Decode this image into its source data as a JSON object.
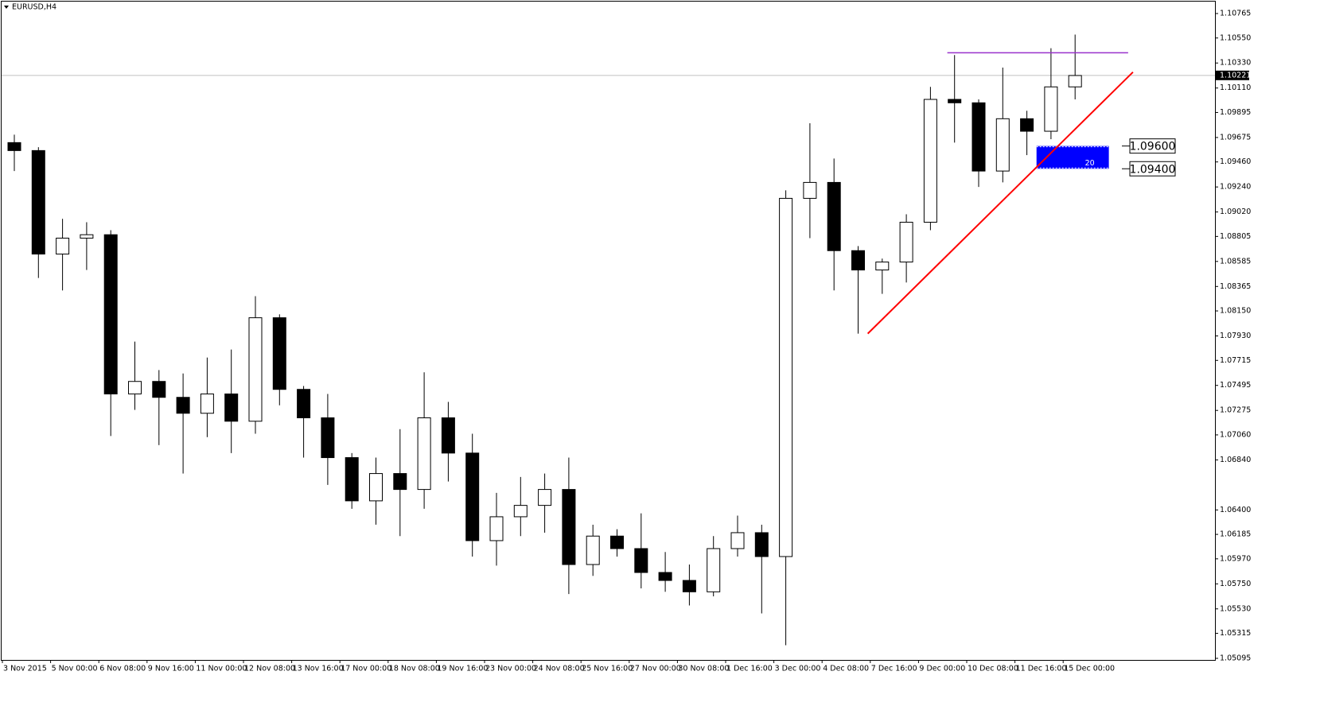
{
  "chart_data": {
    "type": "candlestick",
    "title": "EURUSD,H4",
    "categories": [
      "3 Nov 2015",
      null,
      "5 Nov 00:00",
      null,
      "6 Nov 08:00",
      null,
      "9 Nov 16:00",
      null,
      "11 Nov 00:00",
      null,
      "12 Nov 08:00",
      null,
      "13 Nov 16:00",
      null,
      "17 Nov 00:00",
      null,
      "18 Nov 08:00",
      null,
      "19 Nov 16:00",
      null,
      "23 Nov 00:00",
      null,
      "24 Nov 08:00",
      null,
      "25 Nov 16:00",
      null,
      "27 Nov 00:00",
      null,
      "30 Nov 08:00",
      null,
      "1 Dec 16:00",
      null,
      "3 Dec 00:00",
      null,
      "4 Dec 08:00",
      null,
      "7 Dec 16:00",
      null,
      "9 Dec 00:00",
      null,
      "10 Dec 08:00",
      null,
      "11 Dec 16:00",
      null,
      "15 Dec 00:00"
    ],
    "open": [
      1.0963,
      1.0956,
      1.0865,
      1.0879,
      1.0882,
      1.0742,
      1.0753,
      1.0739,
      1.0725,
      1.0742,
      1.0718,
      1.0809,
      1.0746,
      1.0721,
      1.0686,
      1.0648,
      1.0672,
      1.0658,
      1.0721,
      1.069,
      1.0613,
      1.0634,
      1.0644,
      1.0658,
      1.0592,
      1.0617,
      1.0606,
      1.0585,
      1.0578,
      1.0568,
      1.0606,
      1.062,
      1.0599,
      1.0914,
      1.0928,
      1.0868,
      1.0851,
      1.0858,
      1.0893,
      1.1001,
      1.0998,
      1.0938,
      1.0984,
      1.0973,
      1.1012
    ],
    "high": [
      1.097,
      1.0959,
      1.0896,
      1.0893,
      1.0886,
      1.0788,
      1.0763,
      1.076,
      1.0774,
      1.0781,
      1.0828,
      1.0812,
      1.0749,
      1.0742,
      1.069,
      1.0686,
      1.0711,
      1.0761,
      1.0735,
      1.0707,
      1.0655,
      1.0669,
      1.0672,
      1.0686,
      1.0627,
      1.0623,
      1.0637,
      1.0603,
      1.0592,
      1.0617,
      1.0635,
      1.0627,
      1.0921,
      1.098,
      1.0949,
      1.0872,
      1.0861,
      1.09,
      1.1012,
      1.104,
      1.1001,
      1.1029,
      1.0991,
      1.1046,
      1.1058
    ],
    "low": [
      1.0938,
      1.0844,
      1.0833,
      1.0851,
      1.0705,
      1.0728,
      1.0697,
      1.0672,
      1.0704,
      1.069,
      1.0707,
      1.0732,
      1.0686,
      1.0662,
      1.0641,
      1.0627,
      1.0617,
      1.0641,
      1.0665,
      1.0599,
      1.0591,
      1.0617,
      1.062,
      1.0566,
      1.0582,
      1.0599,
      1.0571,
      1.0568,
      1.0556,
      1.0564,
      1.0599,
      1.0549,
      1.0521,
      1.0879,
      1.0833,
      1.0795,
      1.083,
      1.084,
      1.0886,
      1.0963,
      1.0924,
      1.0928,
      1.0952,
      1.0966,
      1.1001
    ],
    "close": [
      1.0956,
      1.0865,
      1.0879,
      1.0882,
      1.0742,
      1.0753,
      1.0739,
      1.0725,
      1.0742,
      1.0718,
      1.0809,
      1.0746,
      1.0721,
      1.0686,
      1.0648,
      1.0672,
      1.0658,
      1.0721,
      1.069,
      1.0613,
      1.0634,
      1.0644,
      1.0658,
      1.0592,
      1.0617,
      1.0606,
      1.0585,
      1.0578,
      1.0568,
      1.0606,
      1.062,
      1.0599,
      1.0914,
      1.0928,
      1.0868,
      1.0851,
      1.0858,
      1.0893,
      1.1001,
      1.0998,
      1.0938,
      1.0984,
      1.0973,
      1.1012,
      1.1022
    ],
    "up_color": "#ffffff",
    "down_color": "#000000",
    "ylim": [
      1.05081,
      1.1087
    ],
    "yticks": [
      1.10765,
      {
        "value": 1.1055,
        "label": "1.10550"
      },
      {
        "value": 1.1033,
        "label": "1.10330"
      },
      {
        "value": 1.1011,
        "label": "1.10110"
      },
      1.09895,
      1.09675,
      {
        "value": 1.0946,
        "label": "1.09460"
      },
      {
        "value": 1.0924,
        "label": "1.09240"
      },
      {
        "value": 1.0902,
        "label": "1.09020"
      },
      1.08805,
      1.08585,
      1.08365,
      {
        "value": 1.0815,
        "label": "1.08150"
      },
      {
        "value": 1.0793,
        "label": "1.07930"
      },
      1.07715,
      1.07495,
      1.07275,
      {
        "value": 1.0706,
        "label": "1.07060"
      },
      {
        "value": 1.0684,
        "label": "1.06840"
      },
      {
        "value": 1.064,
        "label": "1.06400"
      },
      1.06185,
      {
        "value": 1.0597,
        "label": "1.05970"
      },
      {
        "value": 1.0575,
        "label": "1.05750"
      },
      {
        "value": 1.0553,
        "label": "1.05530"
      },
      1.05315,
      1.05095
    ],
    "current_price": 1.10221,
    "trendline": {
      "color": "#ff0000",
      "x": [
        35.4,
        46.4
      ],
      "y": [
        1.0795,
        1.1025
      ]
    },
    "resistance": {
      "color": "#9932cc",
      "x": [
        38.7,
        46.2
      ],
      "y": [
        1.1042,
        1.1042
      ]
    },
    "zone": {
      "color": "#0000ff",
      "x": [
        42.4,
        45.4
      ],
      "top": {
        "value": 1.096,
        "label": "1.09600"
      },
      "bottom": {
        "value": 1.094,
        "label": "1.09400"
      },
      "text": "20"
    }
  }
}
